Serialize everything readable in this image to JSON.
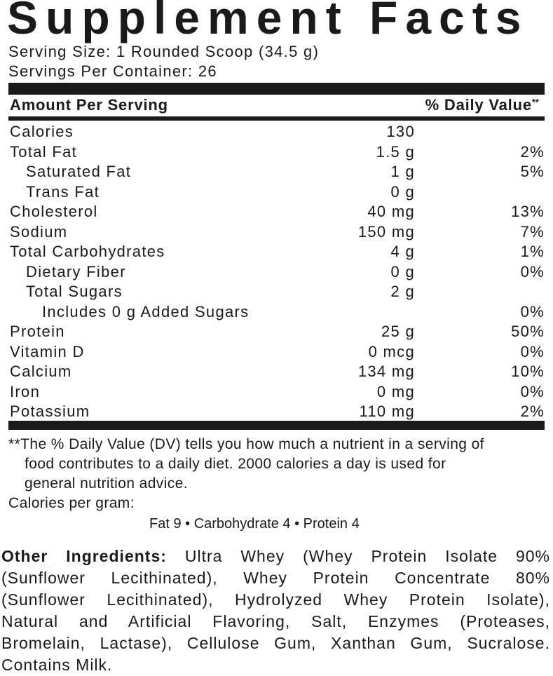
{
  "label": {
    "title": "Supplement Facts",
    "serving_size": "Serving Size: 1 Rounded Scoop (34.5 g)",
    "servings_per_container": "Servings Per Container: 26",
    "header": {
      "amount": "Amount Per Serving",
      "daily_value": "% Daily Value",
      "daily_value_mark": "**"
    },
    "rows": [
      {
        "name": "Calories",
        "amount": "130"
      },
      {
        "name": "Total Fat",
        "amount": "1.5 g",
        "daily_value": "2%"
      },
      {
        "name": "Saturated Fat",
        "amount": "1 g",
        "daily_value": "5%"
      },
      {
        "name": "Trans Fat",
        "amount": "0 g"
      },
      {
        "name": "Cholesterol",
        "amount": "40 mg",
        "daily_value": "13%"
      },
      {
        "name": "Sodium",
        "amount": "150 mg",
        "daily_value": "7%"
      },
      {
        "name": "Total Carbohydrates",
        "amount": "4 g",
        "daily_value": "1%"
      },
      {
        "name": "Dietary Fiber",
        "amount": "0 g",
        "daily_value": "0%"
      },
      {
        "name": "Total Sugars",
        "amount": "2 g"
      },
      {
        "name": "Includes 0 g Added Sugars",
        "daily_value": "0%"
      },
      {
        "name": "Protein",
        "amount": "25 g",
        "daily_value": "50%"
      },
      {
        "name": "Vitamin D",
        "amount": "0 mcg",
        "daily_value": "0%"
      },
      {
        "name": "Calcium",
        "amount": "134 mg",
        "daily_value": "10%"
      },
      {
        "name": "Iron",
        "amount": "0 mg",
        "daily_value": "0%"
      },
      {
        "name": "Potassium",
        "amount": "110 mg",
        "daily_value": "2%"
      }
    ],
    "footnote": {
      "mark": "**",
      "lines": [
        "The % Daily Value (DV) tells you how much a nutrient in a serving of",
        "food contributes to a daily diet. 2000 calories a day is used for",
        "general nutrition advice."
      ]
    },
    "calories_per_gram": {
      "title": "Calories per gram:",
      "breakdown": "Fat 9 • Carbohydrate 4 • Protein 4"
    }
  },
  "other_ingredients": {
    "label": "Other Ingredients:",
    "lines": [
      "Ultra Whey (Whey Protein Isolate 90%",
      "(Sunflower Lecithinated), Whey Protein Concentrate 80%",
      "(Sunflower Lecithinated), Hydrolyzed Whey Protein Isolate),",
      "Natural and Artificial Flavoring, Salt, Enzymes (Proteases,",
      "Bromelain, Lactase), Cellulose Gum, Xanthan Gum, Sucralose.",
      "Contains Milk."
    ]
  }
}
